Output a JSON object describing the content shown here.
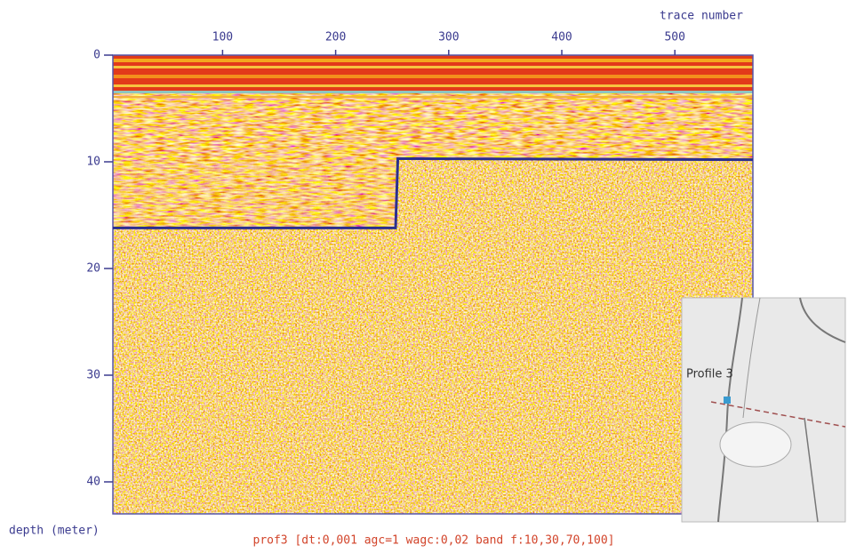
{
  "chart_data": {
    "type": "radargram",
    "xlabel": "trace number",
    "ylabel": "depth (meter)",
    "caption": "prof3   [dt:0,001 agc=1 wagc:0,02  band f:10,30,70,100]",
    "annotations": [
      "Profile 3"
    ],
    "xlim": [
      3,
      569
    ],
    "xticks": [
      100,
      200,
      300,
      400,
      500
    ],
    "ylim": [
      0,
      43
    ],
    "yticks": [
      0,
      10,
      20,
      30,
      40
    ],
    "series": [
      {
        "color": "#2b2f8f",
        "x": [
          3,
          253,
          255,
          569
        ],
        "values": [
          16.2,
          16.2,
          9.7,
          9.8
        ]
      }
    ]
  }
}
